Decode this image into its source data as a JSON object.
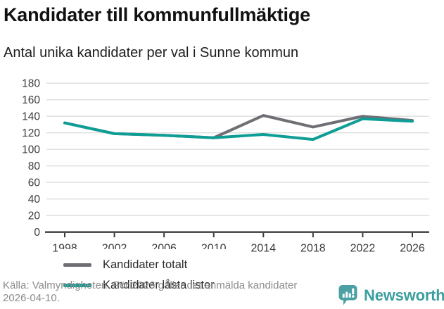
{
  "header": {
    "title": "Kandidater till kommunfullmäktige",
    "subtitle": "Antal unika kandidater per val i Sunne kommun"
  },
  "chart_data": {
    "type": "line",
    "title": "Kandidater till kommunfullmäktige",
    "subtitle": "Antal unika kandidater per val i Sunne kommun",
    "categories": [
      "1998",
      "2002",
      "2006",
      "2010",
      "2014",
      "2018",
      "2022",
      "2026"
    ],
    "series": [
      {
        "name": "Kandidater totalt",
        "color": "#6e6e75",
        "values": [
          132,
          119,
          117,
          114,
          141,
          127,
          140,
          135
        ]
      },
      {
        "name": "Kandidater låsta listor",
        "color": "#0f9e96",
        "values": [
          132,
          119,
          117,
          114,
          118,
          112,
          137,
          134
        ]
      }
    ],
    "ylim": [
      0,
      180
    ],
    "ytick_step": 20,
    "yticks": [
      0,
      20,
      40,
      60,
      80,
      100,
      120,
      140,
      160,
      180
    ],
    "grid": true,
    "legend_position": "inside bottom-left"
  },
  "footer": {
    "source": "Källa: Valmyndigheten. För 2026 gäller det anmälda kandidater 2026-04-10.",
    "brand": "Newsworthy"
  },
  "colors": {
    "series_total_gray": "#6e6e75",
    "series_locked_teal": "#0f9e96",
    "brand_teal": "#3c9ea0",
    "grid": "#dedede",
    "axis": "#3b3b3b",
    "muted_text": "#8c8c8c"
  }
}
